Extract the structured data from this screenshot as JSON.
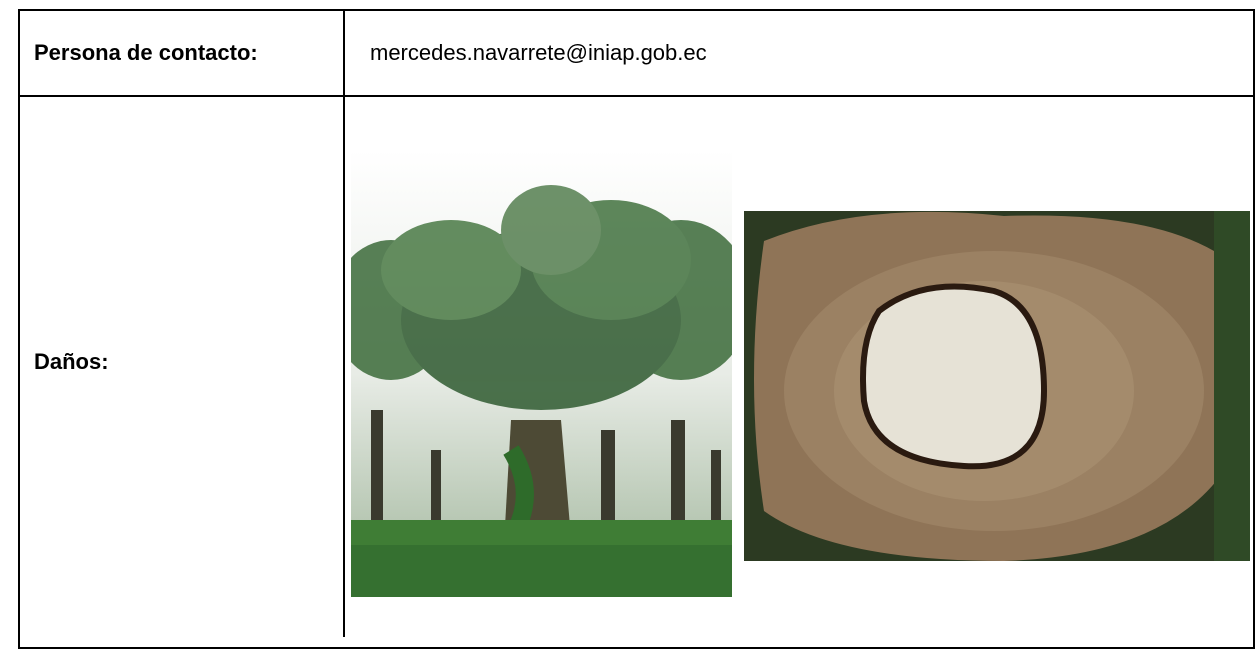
{
  "table": {
    "rows": [
      [
        "Persona de contacto:",
        "mercedes.navarrete@iniap.gob.ec"
      ],
      [
        "Daños:"
      ]
    ]
  }
}
